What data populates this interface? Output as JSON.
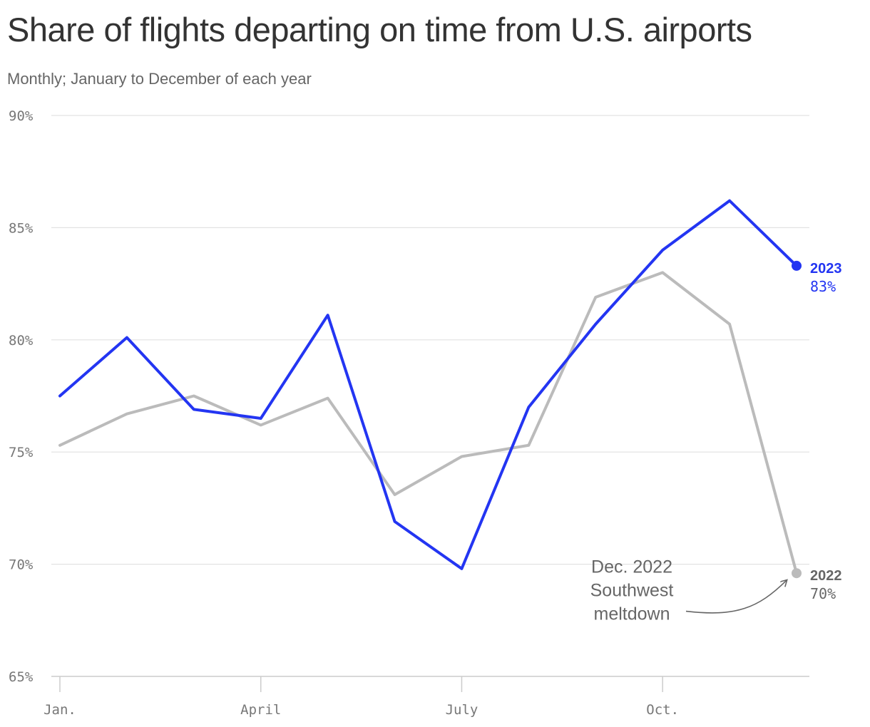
{
  "title": "Share of flights departing on time from U.S. airports",
  "subtitle": "Monthly; January to December of each year",
  "chart_data": {
    "type": "line",
    "x": [
      1,
      2,
      3,
      4,
      5,
      6,
      7,
      8,
      9,
      10,
      11,
      12
    ],
    "xticks": [
      {
        "x": 1,
        "label": "Jan."
      },
      {
        "x": 4,
        "label": "April"
      },
      {
        "x": 7,
        "label": "July"
      },
      {
        "x": 10,
        "label": "Oct."
      }
    ],
    "yticks": [
      {
        "y": 65,
        "label": "65%"
      },
      {
        "y": 70,
        "label": "70%"
      },
      {
        "y": 75,
        "label": "75%"
      },
      {
        "y": 80,
        "label": "80%"
      },
      {
        "y": 85,
        "label": "85%"
      },
      {
        "y": 90,
        "label": "90%"
      }
    ],
    "ylim": [
      65,
      90
    ],
    "grid": true,
    "series": [
      {
        "name": "2022",
        "end_label": "70%",
        "color": "#bbbbbb",
        "label_color": "#666666",
        "values": [
          75.3,
          76.7,
          77.5,
          76.2,
          77.4,
          73.1,
          74.8,
          75.3,
          81.9,
          83.0,
          80.7,
          69.6
        ]
      },
      {
        "name": "2023",
        "end_label": "83%",
        "color": "#2335f2",
        "label_color": "#2335f2",
        "values": [
          77.5,
          80.1,
          76.9,
          76.5,
          81.1,
          71.9,
          69.8,
          77.0,
          80.7,
          84.0,
          86.2,
          83.3
        ]
      }
    ],
    "annotation": {
      "lines": [
        "Dec. 2022",
        "Southwest",
        "meltdown"
      ],
      "target_series": "2022",
      "target_x": 12
    }
  }
}
